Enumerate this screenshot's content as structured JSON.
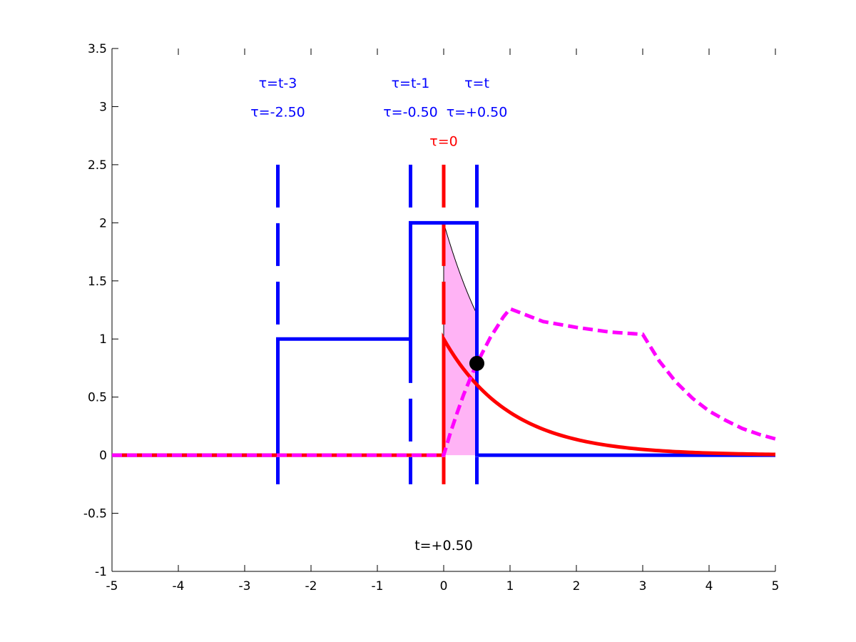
{
  "chart_data": {
    "type": "line",
    "title": "",
    "xlabel": "",
    "ylabel": "",
    "xlim": [
      -5,
      5
    ],
    "ylim": [
      -1,
      3.5
    ],
    "grid": false,
    "xticks": [
      "-5",
      "-4",
      "-3",
      "-2",
      "-1",
      "0",
      "1",
      "2",
      "3",
      "4",
      "5"
    ],
    "yticks": [
      "-1",
      "-0.5",
      "0",
      "0.5",
      "1",
      "1.5",
      "2",
      "2.5",
      "3",
      "3.5"
    ],
    "colors": {
      "blue": "#0000ff",
      "red": "#ff0000",
      "magenta": "#ff00ff",
      "fill": "#ffb3f5",
      "marker": "#000000"
    },
    "series": [
      {
        "kind": "flipped-shifted-input",
        "color": "blue",
        "style": "solid",
        "x": [
          -5,
          -2.5,
          -2.5,
          -0.5,
          -0.5,
          0.5,
          0.5,
          5
        ],
        "y": [
          0,
          0,
          1,
          1,
          2,
          2,
          0,
          0
        ]
      },
      {
        "kind": "impulse-response",
        "color": "red",
        "style": "solid",
        "function": "exp(-t) for t>=0, 0 for t<0",
        "x": [
          -5,
          0,
          0,
          5
        ],
        "y": [
          0,
          0,
          1,
          0.0067
        ]
      },
      {
        "kind": "convolution-output",
        "color": "magenta",
        "style": "dashed",
        "x": [
          -5,
          0,
          0.1,
          0.2,
          0.3,
          0.4,
          0.5,
          0.6,
          0.7,
          0.8,
          0.9,
          1,
          1.5,
          2,
          2.5,
          3,
          3.25,
          3.5,
          3.75,
          4,
          4.25,
          4.5,
          4.75,
          5
        ],
        "y": [
          0,
          0,
          0.19,
          0.36,
          0.52,
          0.66,
          0.79,
          0.9,
          1.01,
          1.1,
          1.19,
          1.26,
          1.15,
          1.1,
          1.06,
          1.04,
          0.81,
          0.63,
          0.49,
          0.38,
          0.3,
          0.23,
          0.18,
          0.14
        ]
      }
    ],
    "shaded_region": {
      "x_from": 0,
      "x_to": 0.5,
      "upper": "2*exp(-tau)",
      "upper_points": [
        [
          0,
          2
        ],
        [
          0.5,
          1.21
        ]
      ]
    },
    "marker": {
      "x": 0.5,
      "y": 0.79
    },
    "vlines": [
      {
        "x": -2.5,
        "color": "blue",
        "top_label": "τ=t-3",
        "value_label": "τ=-2.50"
      },
      {
        "x": -0.5,
        "color": "blue",
        "top_label": "τ=t-1",
        "value_label": "τ=-0.50"
      },
      {
        "x": 0.5,
        "color": "blue",
        "top_label": "τ=t",
        "value_label": "τ=+0.50"
      },
      {
        "x": 0,
        "color": "red",
        "top_label": "",
        "value_label": "τ=0"
      }
    ],
    "annotation": "t=+0.50"
  }
}
